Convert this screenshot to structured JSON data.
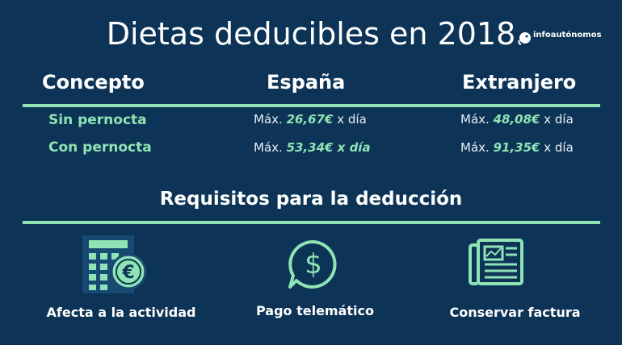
{
  "title": "Dietas deducibles en 2018",
  "logo": {
    "name_prefix": "info",
    "name_suffix": "autónomos",
    "icon": "chameleon-logo-icon"
  },
  "table": {
    "headers": [
      "Concepto",
      "España",
      "Extranjero"
    ],
    "rows": [
      {
        "concept": "Sin pernocta",
        "spain_prefix": "Máx.",
        "spain_value": "26,67€",
        "spain_suffix": "x día",
        "abroad_prefix": "Máx.",
        "abroad_value": "48,08€",
        "abroad_suffix": "x día"
      },
      {
        "concept": "Con pernocta",
        "spain_prefix": "Máx.",
        "spain_value": "53,34€ x día",
        "spain_suffix": "",
        "abroad_prefix": "Máx.",
        "abroad_value": "91,35€",
        "abroad_suffix": "x día"
      }
    ]
  },
  "requirements": {
    "title": "Requisitos para la deducción",
    "items": [
      {
        "label": "Afecta a la actividad",
        "icon": "calculator-euro-icon"
      },
      {
        "label": "Pago telemático",
        "icon": "dollar-speech-bubble-icon"
      },
      {
        "label": "Conservar factura",
        "icon": "newspaper-invoice-icon"
      }
    ]
  },
  "colors": {
    "background": "#0d3457",
    "accent": "#8fe3b4",
    "text": "#ffffff"
  }
}
